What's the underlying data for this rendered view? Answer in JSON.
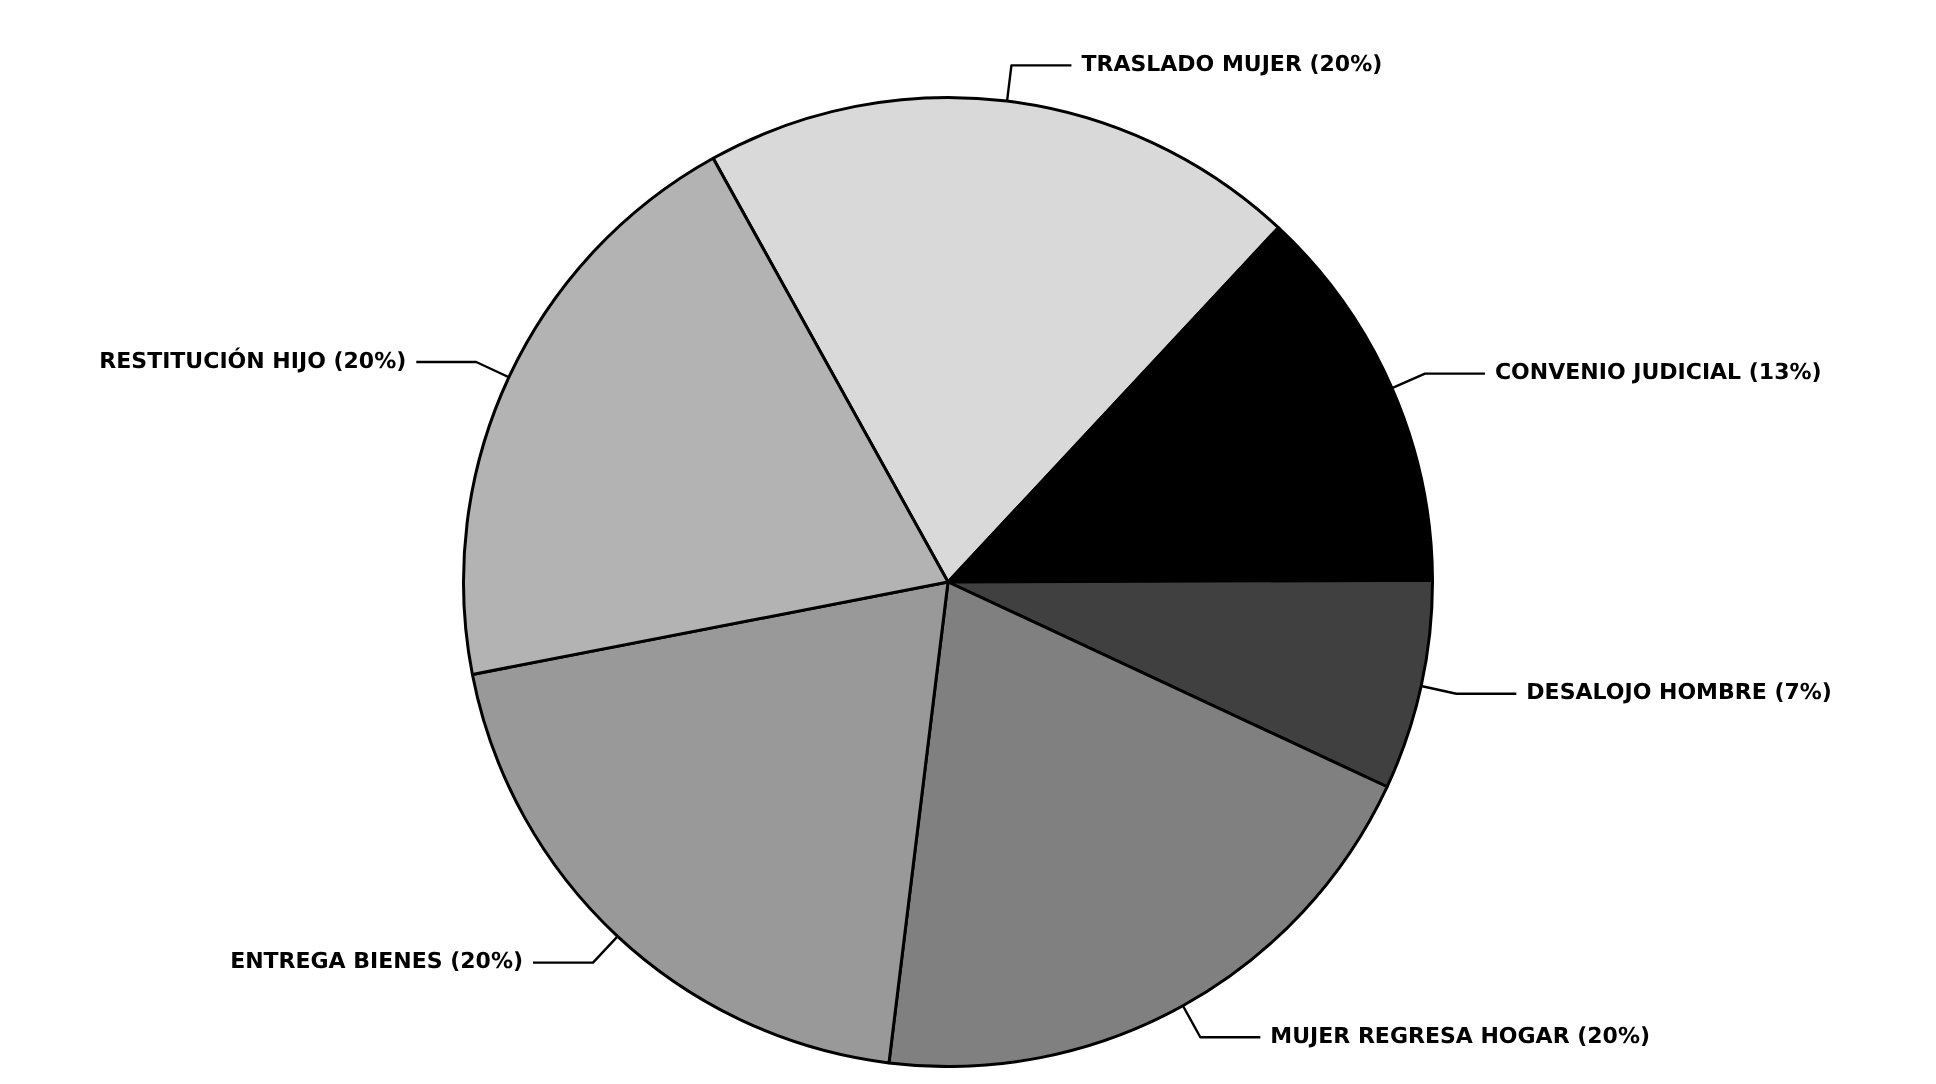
{
  "chart_data": {
    "type": "pie",
    "categories": [
      "TRASLADO MUJER (20%)",
      "CONVENIO JUDICIAL (13%)",
      "DESALOJO HOMBRE (7%)",
      "MUJER REGRESA HOGAR (20%)",
      "ENTREGA BIENES (20%)",
      "RESTITUCIÓN HIJO (20%)"
    ],
    "values": [
      20,
      13,
      7,
      20,
      20,
      20
    ],
    "colors": [
      "#d9d9d9",
      "#000000",
      "#404040",
      "#808080",
      "#999999",
      "#b3b3b3"
    ],
    "legend": false
  }
}
